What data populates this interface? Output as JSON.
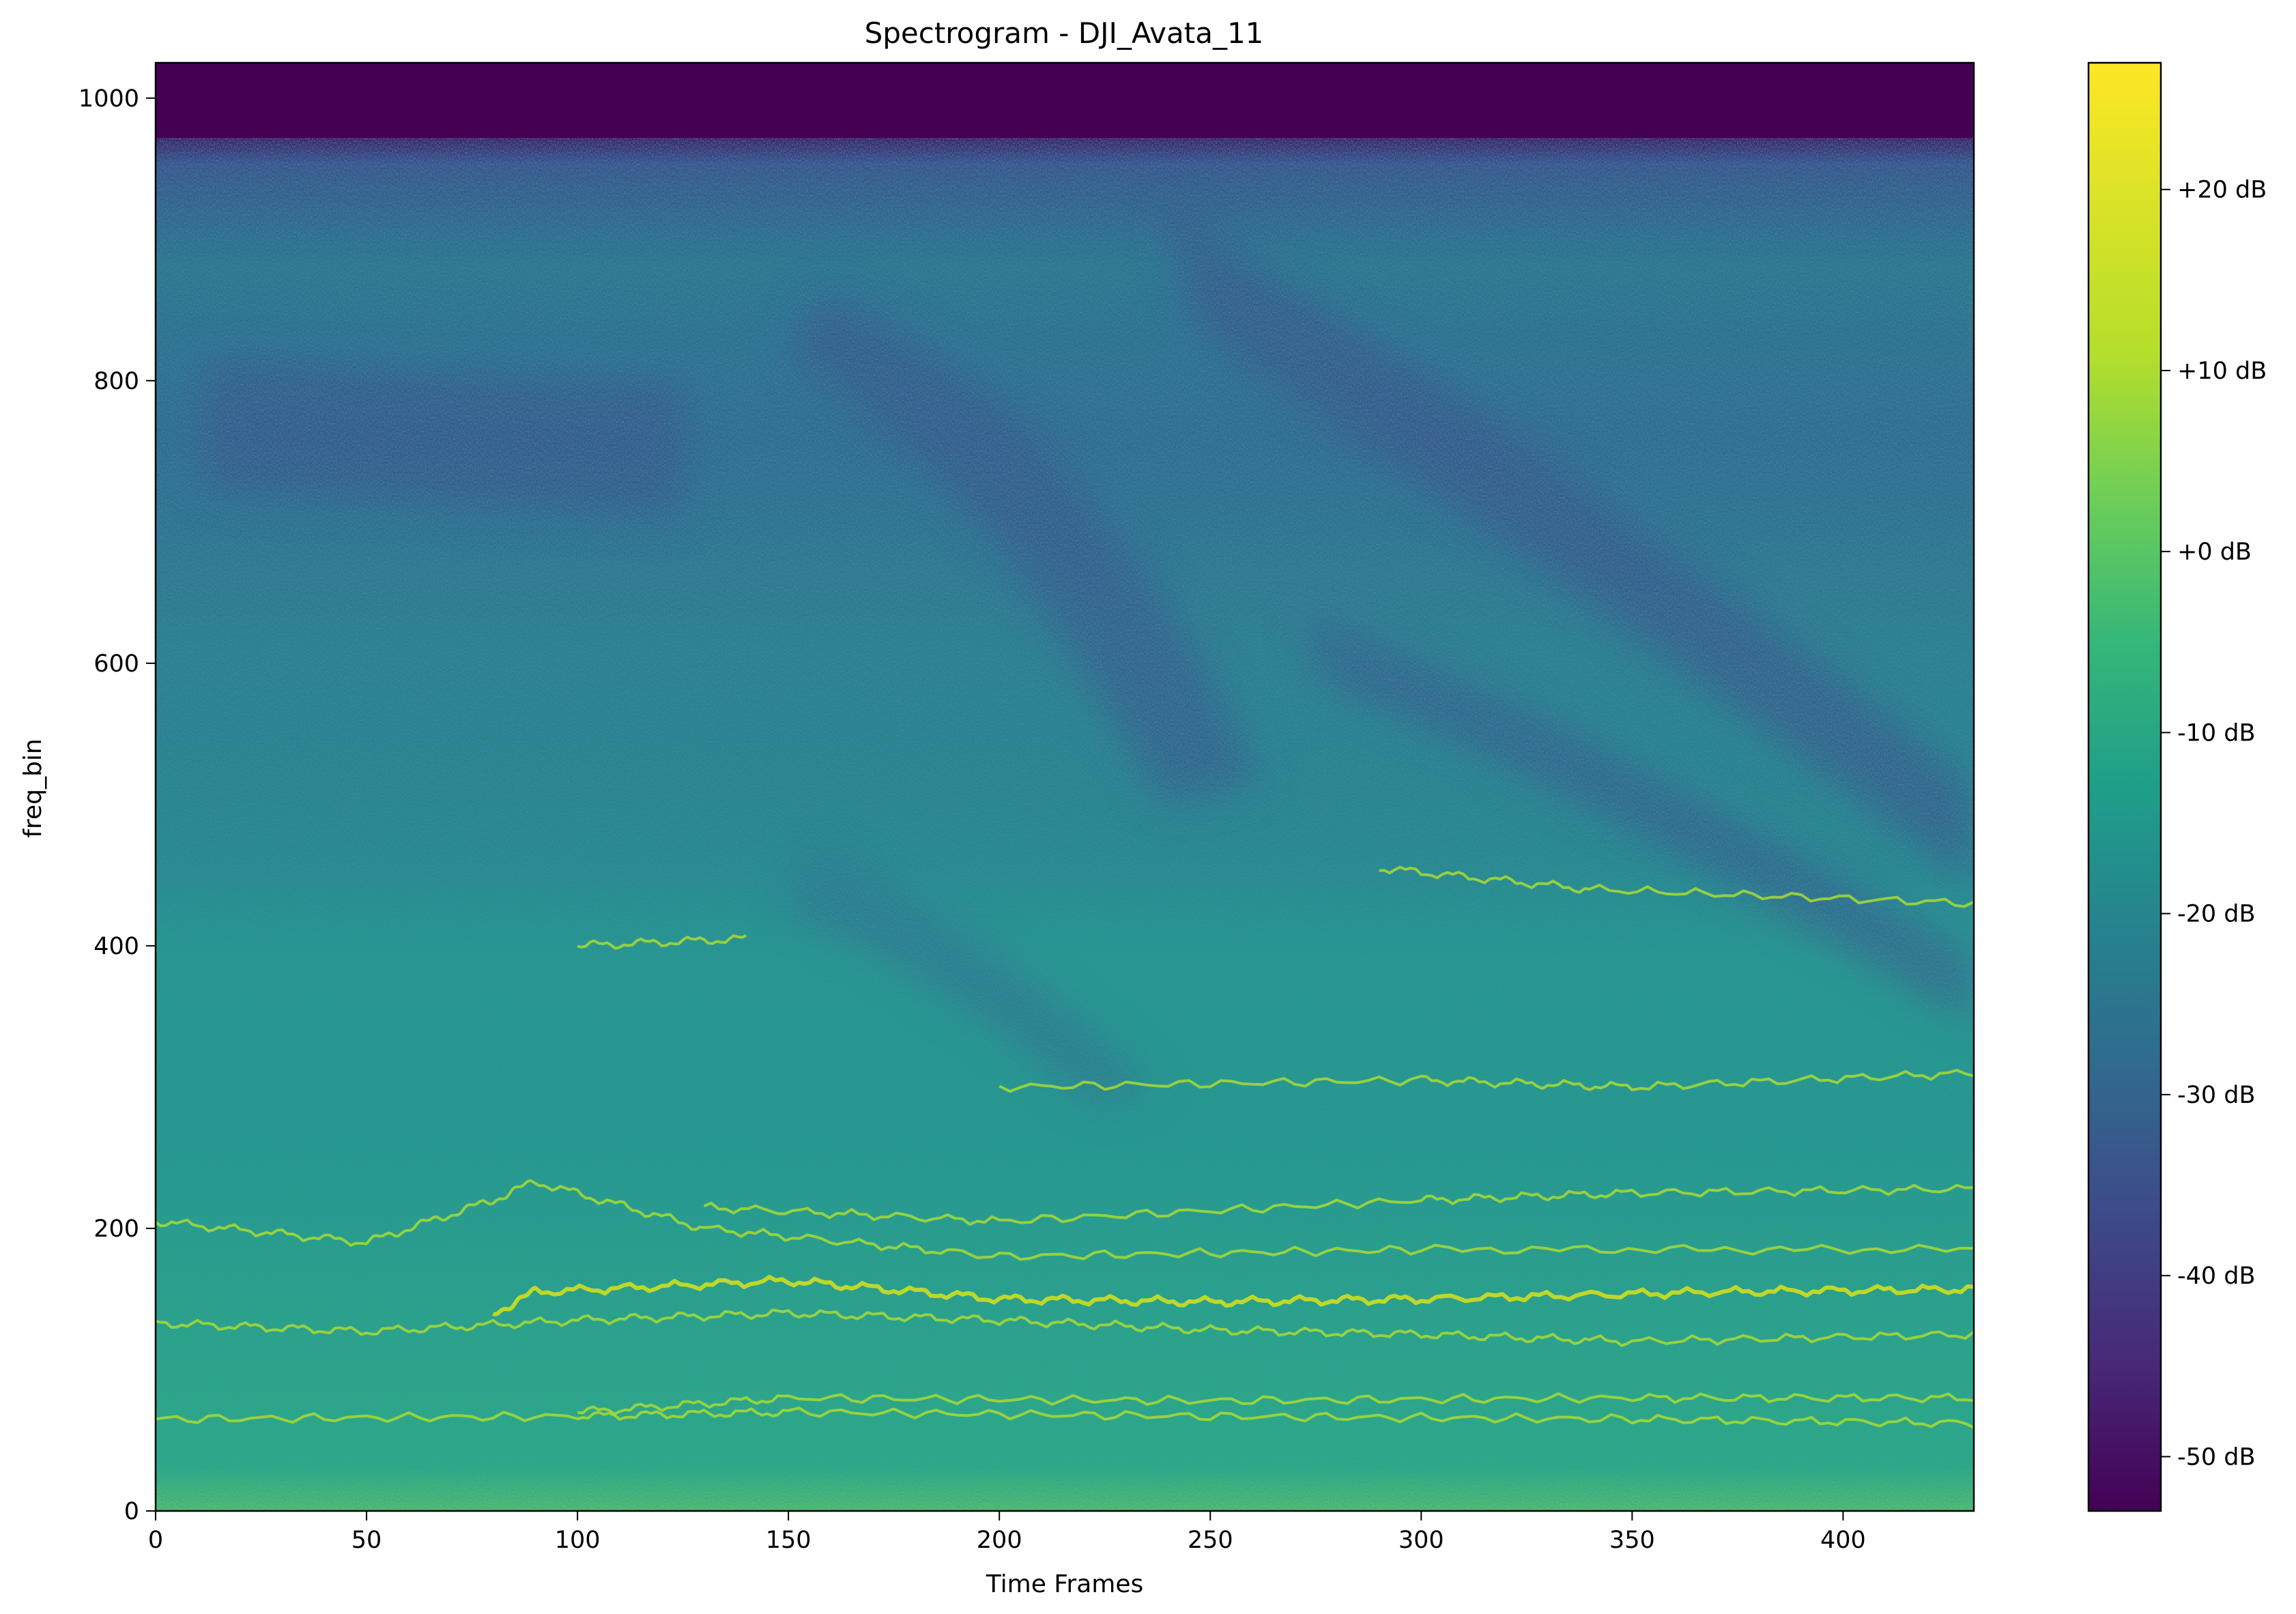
{
  "chart_data": {
    "type": "heatmap",
    "title": "Spectrogram - DJI_Avata_11",
    "xlabel": "Time Frames",
    "ylabel": "freq_bin",
    "xlim": [
      0,
      431
    ],
    "ylim": [
      0,
      1025
    ],
    "x_ticks": [
      0,
      50,
      100,
      150,
      200,
      250,
      300,
      350,
      400
    ],
    "x_tick_labels": [
      "0",
      "50",
      "100",
      "150",
      "200",
      "250",
      "300",
      "350",
      "400"
    ],
    "y_ticks": [
      0,
      200,
      400,
      600,
      800,
      1000
    ],
    "y_tick_labels": [
      "0",
      "200",
      "400",
      "600",
      "800",
      "1000"
    ],
    "colormap": "viridis",
    "colorbar": {
      "vmin": -53,
      "vmax": 27,
      "ticks": [
        20,
        10,
        0,
        -10,
        -20,
        -30,
        -40,
        -50
      ],
      "tick_labels": [
        "+20 dB",
        "+10 dB",
        "+0 dB",
        "-10 dB",
        "-20 dB",
        "-30 dB",
        "-40 dB",
        "-50 dB"
      ]
    },
    "grid": false,
    "harmonic_tracks_freq_bin": [
      [
        [
          0,
          65
        ],
        [
          100,
          67
        ],
        [
          150,
          70
        ],
        [
          250,
          67
        ],
        [
          350,
          65
        ],
        [
          431,
          62
        ]
      ],
      [
        [
          100,
          70
        ],
        [
          150,
          80
        ],
        [
          250,
          78
        ],
        [
          350,
          80
        ],
        [
          431,
          80
        ]
      ],
      [
        [
          0,
          133
        ],
        [
          50,
          127
        ],
        [
          100,
          135
        ],
        [
          150,
          140
        ],
        [
          200,
          135
        ],
        [
          250,
          128
        ],
        [
          300,
          125
        ],
        [
          350,
          120
        ],
        [
          431,
          125
        ]
      ],
      [
        [
          80,
          140
        ],
        [
          90,
          155
        ],
        [
          150,
          163
        ],
        [
          200,
          150
        ],
        [
          250,
          148
        ],
        [
          300,
          150
        ],
        [
          370,
          155
        ],
        [
          431,
          157
        ]
      ],
      [
        [
          0,
          205
        ],
        [
          50,
          190
        ],
        [
          80,
          220
        ],
        [
          90,
          233
        ],
        [
          130,
          200
        ],
        [
          200,
          180
        ],
        [
          300,
          185
        ],
        [
          431,
          185
        ]
      ],
      [
        [
          130,
          215
        ],
        [
          200,
          205
        ],
        [
          300,
          220
        ],
        [
          350,
          225
        ],
        [
          431,
          228
        ]
      ],
      [
        [
          200,
          300
        ],
        [
          300,
          305
        ],
        [
          350,
          300
        ],
        [
          431,
          310
        ]
      ],
      [
        [
          100,
          400
        ],
        [
          140,
          405
        ]
      ],
      [
        [
          290,
          455
        ],
        [
          340,
          440
        ],
        [
          431,
          430
        ]
      ]
    ]
  }
}
